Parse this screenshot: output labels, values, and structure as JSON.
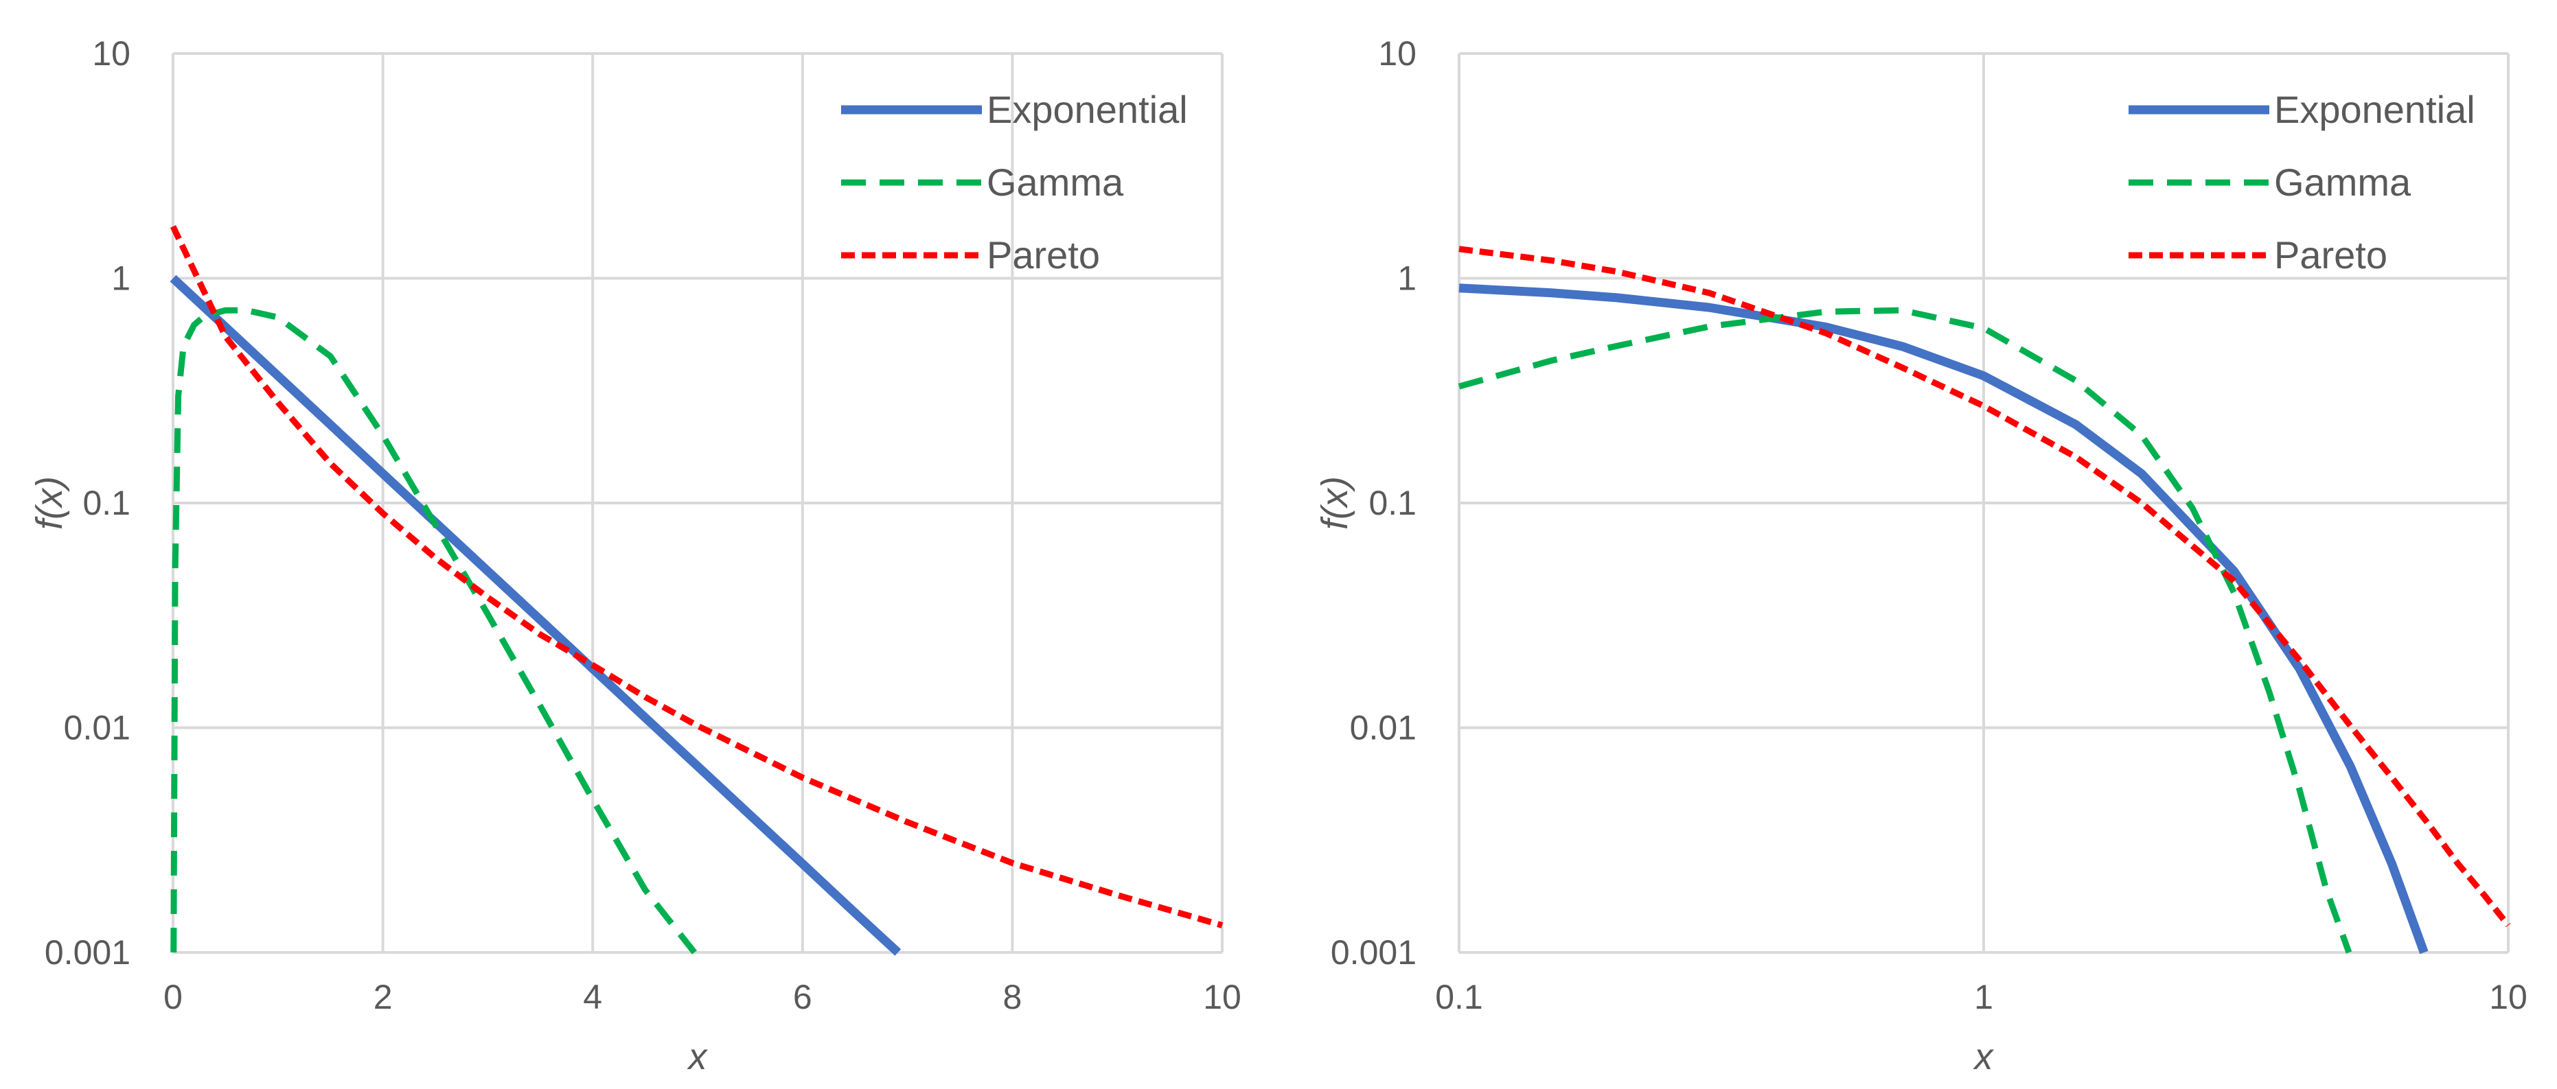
{
  "chart_data": [
    {
      "type": "line",
      "id": "left",
      "x_scale": "linear",
      "y_scale": "log",
      "xlim": [
        0,
        10
      ],
      "ylim": [
        0.001,
        10
      ],
      "x_ticks": [
        0,
        2,
        4,
        6,
        8,
        10
      ],
      "x_tick_labels": [
        "0",
        "2",
        "4",
        "6",
        "8",
        "10"
      ],
      "y_ticks": [
        0.001,
        0.01,
        0.1,
        1,
        10
      ],
      "y_tick_labels": [
        "0.001",
        "0.01",
        "0.1",
        "1",
        "10"
      ],
      "xlabel": "x",
      "ylabel": "f(x)",
      "legend_position": "top-right",
      "series": [
        {
          "name": "Exponential",
          "color": "#4472C4",
          "style": "solid",
          "x": [
            0,
            0.5,
            1,
            1.5,
            2,
            2.5,
            3,
            3.5,
            4,
            4.5,
            5,
            5.5,
            6,
            6.5,
            6.91
          ],
          "y": [
            1,
            0.607,
            0.368,
            0.223,
            0.135,
            0.082,
            0.0498,
            0.0302,
            0.0183,
            0.0111,
            0.00674,
            0.00409,
            0.00248,
            0.0015,
            0.001
          ]
        },
        {
          "name": "Gamma",
          "color": "#00B050",
          "style": "dashed",
          "x": [
            0.005,
            0.02,
            0.05,
            0.1,
            0.2,
            0.3,
            0.5,
            0.7,
            1,
            1.5,
            2,
            2.5,
            3,
            3.5,
            4,
            4.5,
            4.97
          ],
          "y": [
            0.001,
            0.05,
            0.3,
            0.5,
            0.62,
            0.68,
            0.72,
            0.72,
            0.67,
            0.45,
            0.2,
            0.08,
            0.032,
            0.0125,
            0.0048,
            0.0019,
            0.001
          ]
        },
        {
          "name": "Pareto",
          "color": "#FF0000",
          "style": "dotted",
          "x": [
            0,
            0.5,
            1,
            1.5,
            2,
            2.5,
            3,
            3.5,
            4,
            4.5,
            5,
            6,
            7,
            8,
            9,
            10
          ],
          "y": [
            1.7,
            0.55,
            0.28,
            0.15,
            0.09,
            0.057,
            0.038,
            0.026,
            0.019,
            0.0137,
            0.0102,
            0.006,
            0.0038,
            0.0025,
            0.0018,
            0.00132
          ]
        }
      ]
    },
    {
      "type": "line",
      "id": "right",
      "x_scale": "log",
      "y_scale": "log",
      "xlim": [
        0.1,
        10
      ],
      "ylim": [
        0.001,
        10
      ],
      "x_ticks": [
        0.1,
        1,
        10
      ],
      "x_tick_labels": [
        "0.1",
        "1",
        "10"
      ],
      "y_ticks": [
        0.001,
        0.01,
        0.1,
        1,
        10
      ],
      "y_tick_labels": [
        "0.001",
        "0.01",
        "0.1",
        "1",
        "10"
      ],
      "xlabel": "x",
      "ylabel": "f(x)",
      "legend_position": "top-right",
      "series": [
        {
          "name": "Exponential",
          "color": "#4472C4",
          "style": "solid",
          "x": [
            0.1,
            0.15,
            0.2,
            0.3,
            0.5,
            0.7,
            1,
            1.5,
            2,
            3,
            4,
            5,
            6,
            6.91
          ],
          "y": [
            0.905,
            0.861,
            0.819,
            0.741,
            0.607,
            0.497,
            0.368,
            0.223,
            0.135,
            0.0498,
            0.0183,
            0.00674,
            0.00248,
            0.001
          ]
        },
        {
          "name": "Gamma",
          "color": "#00B050",
          "style": "dashed",
          "x": [
            0.1,
            0.15,
            0.2,
            0.3,
            0.5,
            0.7,
            1,
            1.5,
            2,
            2.5,
            3,
            3.5,
            4,
            4.5,
            4.97
          ],
          "y": [
            0.33,
            0.43,
            0.5,
            0.61,
            0.71,
            0.72,
            0.6,
            0.35,
            0.2,
            0.095,
            0.04,
            0.0145,
            0.0053,
            0.0019,
            0.001
          ]
        },
        {
          "name": "Pareto",
          "color": "#FF0000",
          "style": "dotted",
          "x": [
            0.1,
            0.15,
            0.2,
            0.3,
            0.5,
            0.7,
            1,
            1.5,
            2,
            3,
            4,
            5,
            6,
            7,
            8,
            9,
            10
          ],
          "y": [
            1.35,
            1.2,
            1.07,
            0.86,
            0.57,
            0.4,
            0.27,
            0.16,
            0.1,
            0.045,
            0.02,
            0.0102,
            0.006,
            0.0038,
            0.0025,
            0.0018,
            0.00132
          ]
        }
      ]
    }
  ]
}
